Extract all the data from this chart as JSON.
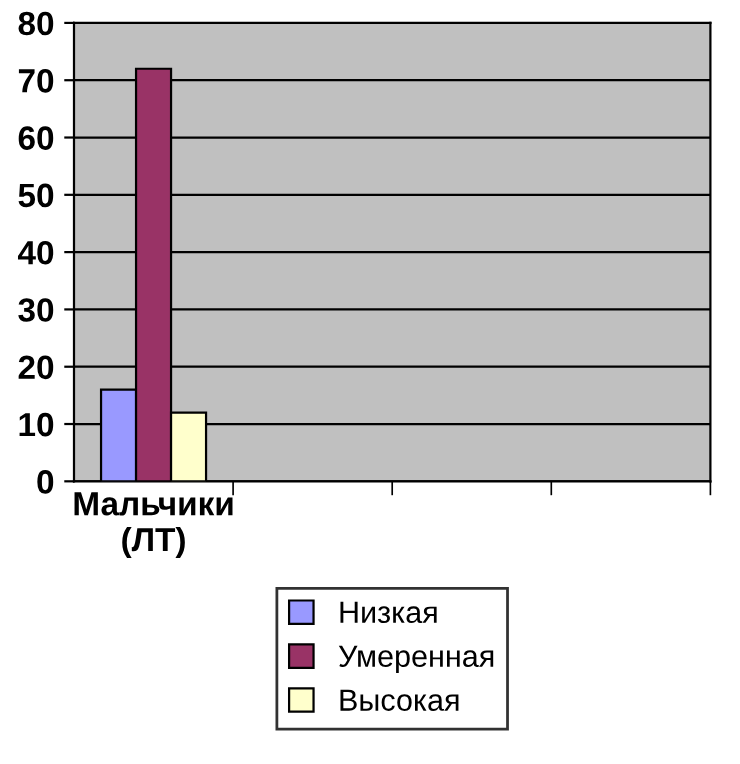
{
  "chart_data": {
    "type": "bar",
    "categories": [
      "Мальчики (ЛТ)",
      null,
      null,
      null
    ],
    "series": [
      {
        "name": "Низкая",
        "color": "#9999ff",
        "values": [
          16,
          null,
          null,
          null
        ]
      },
      {
        "name": "Умеренная",
        "color": "#993366",
        "values": [
          72,
          null,
          null,
          null
        ]
      },
      {
        "name": "Высокая",
        "color": "#ffffcc",
        "values": [
          12,
          null,
          null,
          null
        ]
      }
    ],
    "ylim": [
      0,
      80
    ],
    "yticks": [
      0,
      10,
      20,
      30,
      40,
      50,
      60,
      70,
      80
    ],
    "grid": "y",
    "legend": "bottom"
  }
}
